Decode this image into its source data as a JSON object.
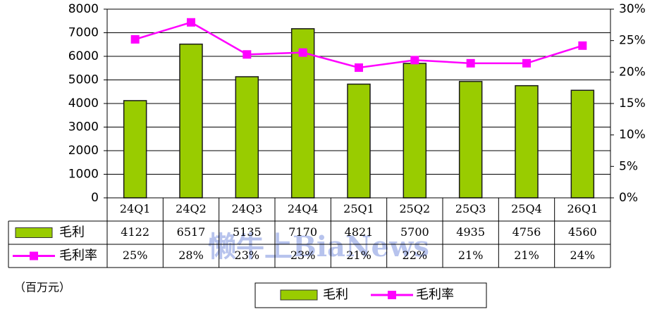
{
  "chart_data": {
    "type": "bar",
    "categories": [
      "24Q1",
      "24Q2",
      "24Q3",
      "24Q4",
      "25Q1",
      "25Q2",
      "25Q3",
      "25Q4",
      "26Q1"
    ],
    "series": [
      {
        "name": "毛利",
        "color": "#99cc00",
        "values": [
          4122,
          6517,
          5135,
          7170,
          4821,
          5700,
          4935,
          4756,
          4560
        ]
      },
      {
        "name": "毛利率",
        "color": "#ff00ff",
        "type": "line",
        "axis": "y2",
        "values": [
          25.2,
          27.9,
          22.8,
          23.1,
          20.7,
          21.9,
          21.4,
          21.4,
          24.2
        ],
        "value_labels": [
          "25%",
          "28%",
          "23%",
          "23%",
          "21%",
          "22%",
          "21%",
          "21%",
          "24%"
        ]
      }
    ],
    "ylim": [
      0,
      8000
    ],
    "yticks": [
      0,
      1000,
      2000,
      3000,
      4000,
      5000,
      6000,
      7000,
      8000
    ],
    "y2lim": [
      0,
      30
    ],
    "y2ticks": [
      {
        "value": 0,
        "label": "0%"
      },
      {
        "value": 5,
        "label": "5%"
      },
      {
        "value": 10,
        "label": "10%"
      },
      {
        "value": 15,
        "label": "15%"
      },
      {
        "value": 20,
        "label": "20%"
      },
      {
        "value": 25,
        "label": "25%"
      },
      {
        "value": 30,
        "label": "30%"
      }
    ],
    "grid": true,
    "unit_note": "（百万元）",
    "watermark": "懒牛上BiaNews"
  }
}
